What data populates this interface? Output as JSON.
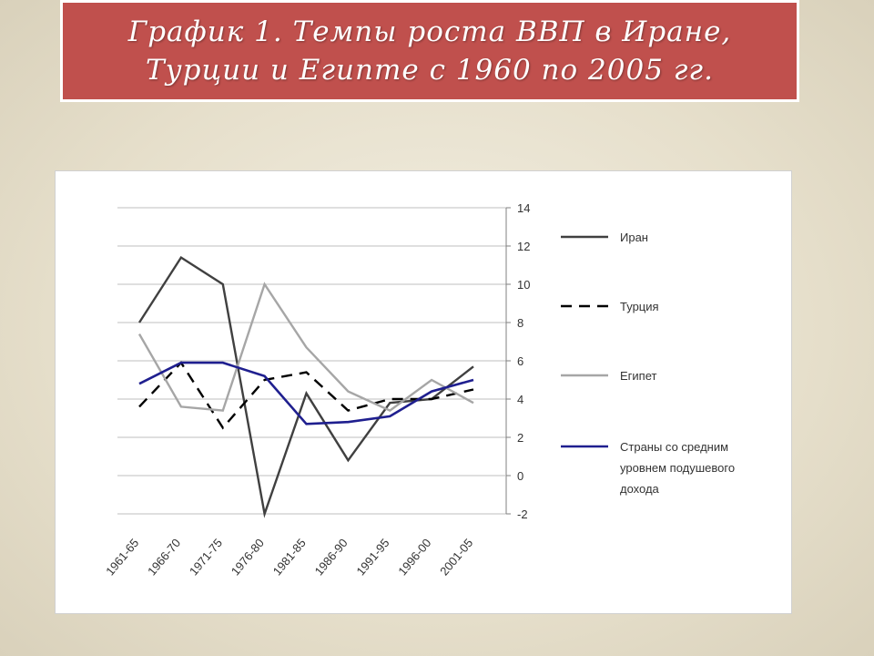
{
  "slide": {
    "title_line1": "График 1. Темпы роста ВВП в Иране,",
    "title_line2": "Турции и Египте с 1960 по 2005 гг."
  },
  "chart_data": {
    "type": "line",
    "categories": [
      "1961-65",
      "1966-70",
      "1971-75",
      "1976-80",
      "1981-85",
      "1986-90",
      "1991-95",
      "1996-00",
      "2001-05"
    ],
    "ylim": [
      -2,
      14
    ],
    "yticks": [
      -2,
      0,
      2,
      4,
      6,
      8,
      10,
      12,
      14
    ],
    "grid": true,
    "legend_position": "right",
    "series": [
      {
        "name": "Иран",
        "color": "#404040",
        "dash": "solid",
        "values": [
          8.0,
          11.4,
          10.0,
          -2.0,
          4.3,
          0.8,
          3.8,
          4.0,
          5.7
        ]
      },
      {
        "name": "Турция",
        "color": "#000000",
        "dash": "dashed",
        "values": [
          3.6,
          5.9,
          2.5,
          5.0,
          5.4,
          3.4,
          4.0,
          4.0,
          4.5
        ]
      },
      {
        "name": "Египет",
        "color": "#a6a6a6",
        "dash": "solid",
        "values": [
          7.4,
          3.6,
          3.4,
          10.0,
          6.7,
          4.4,
          3.4,
          5.0,
          3.8
        ]
      },
      {
        "name_lines": [
          "Страны со средним",
          "уровнем подушевого",
          "дохода"
        ],
        "color": "#1f1f8f",
        "dash": "solid",
        "values": [
          4.8,
          5.9,
          5.9,
          5.2,
          2.7,
          2.8,
          3.1,
          4.4,
          5.0
        ]
      }
    ]
  }
}
